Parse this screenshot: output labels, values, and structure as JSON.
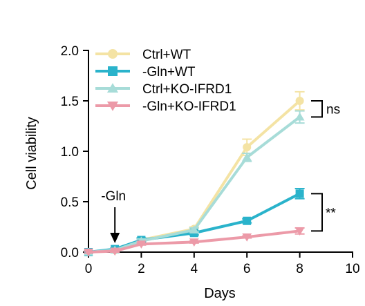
{
  "chart_data": {
    "type": "line",
    "xlabel": "Days",
    "ylabel": "Cell viability",
    "xlim": [
      0,
      10
    ],
    "ylim": [
      0,
      2.0
    ],
    "xticks": [
      "0",
      "2",
      "4",
      "6",
      "8",
      "10"
    ],
    "yticks": [
      "0.0",
      "0.5",
      "1.0",
      "1.5",
      "2.0"
    ],
    "grid": false,
    "legend_position": "top-left",
    "x": [
      0,
      1,
      2,
      4,
      6,
      8
    ],
    "series": [
      {
        "name": "Ctrl+WT",
        "color": "#f4e3a4",
        "marker": "circle",
        "values": [
          0.0,
          0.02,
          0.12,
          0.23,
          1.04,
          1.5
        ],
        "errors": [
          0.01,
          0.01,
          0.02,
          0.02,
          0.08,
          0.09
        ]
      },
      {
        "name": "-Gln+WT",
        "color": "#2ab3cb",
        "marker": "square",
        "values": [
          0.0,
          0.03,
          0.12,
          0.19,
          0.31,
          0.58
        ],
        "errors": [
          0.01,
          0.01,
          0.02,
          0.02,
          0.02,
          0.05
        ]
      },
      {
        "name": "Ctrl+KO-IFRD1",
        "color": "#a7dcd8",
        "marker": "triangle-up",
        "values": [
          0.0,
          0.02,
          0.11,
          0.22,
          0.94,
          1.34
        ],
        "errors": [
          0.01,
          0.01,
          0.02,
          0.02,
          0.04,
          0.06
        ]
      },
      {
        "name": "-Gln+KO-IFRD1",
        "color": "#ec9aa8",
        "marker": "triangle-down",
        "values": [
          0.0,
          0.01,
          0.08,
          0.1,
          0.15,
          0.21
        ],
        "errors": [
          0.01,
          0.01,
          0.01,
          0.01,
          0.01,
          0.03
        ]
      }
    ],
    "annotations": {
      "arrow_label": "-Gln",
      "arrow_x": 1,
      "sig_top": "ns",
      "sig_bottom": "**"
    }
  }
}
